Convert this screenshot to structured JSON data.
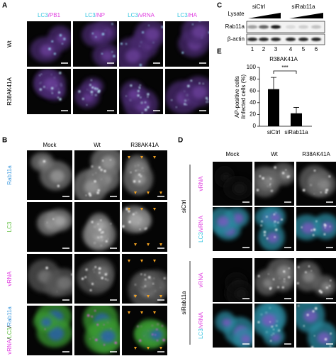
{
  "panel_a": {
    "label": "A",
    "columns": [
      [
        "LC3",
        "/PB1"
      ],
      [
        "LC3",
        "/NP"
      ],
      [
        "LC3",
        "/vRNA"
      ],
      [
        "LC3",
        "/HA"
      ]
    ],
    "rows": [
      "Wt",
      "R38AK41A"
    ]
  },
  "panel_b": {
    "label": "B",
    "columns": [
      "Mock",
      "Wt",
      "R38AK41A"
    ],
    "rows": [
      [
        "Rab11a"
      ],
      [
        "LC3"
      ],
      [
        "vRNA"
      ],
      [
        "vRNA",
        "/",
        "LC3",
        "/",
        "Rab11a"
      ]
    ]
  },
  "panel_c": {
    "label": "C",
    "lysate": "Lysate",
    "groups": [
      "siCtrl",
      "siRab11a"
    ],
    "blots": [
      "Rab11a",
      "β-actin"
    ],
    "lanes": [
      1,
      2,
      3,
      4,
      5,
      6
    ]
  },
  "panel_d": {
    "label": "D",
    "columns": [
      "Mock",
      "Wt",
      "R38AK41A"
    ],
    "groups": [
      "siCtrl",
      "siRab11a"
    ],
    "rows": [
      [
        "vRNA"
      ],
      [
        "LC3",
        "/vRNA"
      ]
    ]
  },
  "chart_data": {
    "type": "bar",
    "label": "E",
    "title": "R38AK41A",
    "y_label": [
      "AP-positive cells",
      "/infected cells (%)"
    ],
    "categories": [
      "siCtrl",
      "siRab11a"
    ],
    "values": [
      63,
      22
    ],
    "errors": [
      20,
      10
    ],
    "color": "#000000",
    "ylim": [
      0,
      100
    ],
    "yticks": [
      0,
      20,
      40,
      60,
      80,
      100
    ],
    "annotation": "***"
  }
}
